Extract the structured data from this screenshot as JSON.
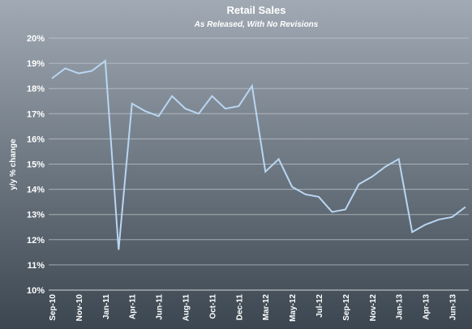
{
  "chart_data": {
    "type": "line",
    "title": "Retail Sales",
    "subtitle": "As Released, With No Revisions",
    "y_label": "y/y % change",
    "categories": [
      "Sep-10",
      null,
      "Nov-10",
      null,
      "Jan-11",
      null,
      "Apr-11",
      null,
      "Jun-11",
      null,
      "Aug-11",
      null,
      "Oct-11",
      null,
      "Dec-11",
      null,
      "Mar-12",
      null,
      "May-12",
      null,
      "Jul-12",
      null,
      "Sep-12",
      null,
      "Nov-12",
      null,
      "Jan-13",
      null,
      "Apr-13",
      null,
      "Jun-13",
      null
    ],
    "series": [
      {
        "name": "Retail Sales",
        "color": "#b9d6f2",
        "values": [
          18.4,
          18.8,
          18.6,
          18.7,
          19.1,
          11.6,
          17.4,
          17.1,
          16.9,
          17.7,
          17.2,
          17.0,
          17.7,
          17.2,
          17.3,
          18.1,
          14.7,
          15.2,
          14.1,
          13.8,
          13.7,
          13.1,
          13.2,
          14.2,
          14.5,
          14.9,
          15.2,
          12.3,
          12.6,
          12.8,
          12.9,
          13.3
        ]
      }
    ],
    "ylim": [
      10,
      20
    ],
    "yticks": [
      {
        "value": 10,
        "label": "10%"
      },
      {
        "value": 11,
        "label": "11%"
      },
      {
        "value": 12,
        "label": "12%"
      },
      {
        "value": 13,
        "label": "13%"
      },
      {
        "value": 14,
        "label": "14%"
      },
      {
        "value": 15,
        "label": "15%"
      },
      {
        "value": 16,
        "label": "16%"
      },
      {
        "value": 17,
        "label": "17%"
      },
      {
        "value": 18,
        "label": "18%"
      },
      {
        "value": 19,
        "label": "19%"
      },
      {
        "value": 20,
        "label": "20%"
      }
    ],
    "grid": true
  }
}
